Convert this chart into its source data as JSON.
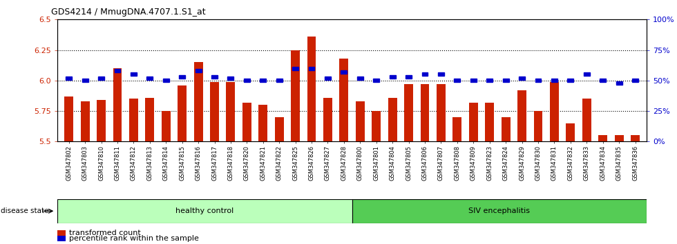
{
  "title": "GDS4214 / MmugDNA.4707.1.S1_at",
  "samples": [
    "GSM347802",
    "GSM347803",
    "GSM347810",
    "GSM347811",
    "GSM347812",
    "GSM347813",
    "GSM347814",
    "GSM347815",
    "GSM347816",
    "GSM347817",
    "GSM347818",
    "GSM347820",
    "GSM347821",
    "GSM347822",
    "GSM347825",
    "GSM347826",
    "GSM347827",
    "GSM347828",
    "GSM347800",
    "GSM347801",
    "GSM347804",
    "GSM347805",
    "GSM347806",
    "GSM347807",
    "GSM347808",
    "GSM347809",
    "GSM347823",
    "GSM347824",
    "GSM347829",
    "GSM347830",
    "GSM347831",
    "GSM347832",
    "GSM347833",
    "GSM347834",
    "GSM347835",
    "GSM347836"
  ],
  "bar_values": [
    5.87,
    5.83,
    5.84,
    6.1,
    5.85,
    5.86,
    5.75,
    5.96,
    6.15,
    5.99,
    5.99,
    5.82,
    5.8,
    5.7,
    6.25,
    6.36,
    5.86,
    6.18,
    5.83,
    5.75,
    5.86,
    5.97,
    5.97,
    5.97,
    5.7,
    5.82,
    5.82,
    5.7,
    5.92,
    5.75,
    5.99,
    5.65,
    5.85,
    5.55,
    5.55,
    5.55
  ],
  "percentile_values": [
    52,
    50,
    52,
    58,
    55,
    52,
    50,
    53,
    58,
    53,
    52,
    50,
    50,
    50,
    60,
    60,
    52,
    57,
    52,
    50,
    53,
    53,
    55,
    55,
    50,
    50,
    50,
    50,
    52,
    50,
    50,
    50,
    55,
    50,
    48,
    50
  ],
  "ylim_left": [
    5.5,
    6.5
  ],
  "ylim_right": [
    0,
    100
  ],
  "yticks_left": [
    5.5,
    5.75,
    6.0,
    6.25,
    6.5
  ],
  "yticks_right": [
    0,
    25,
    50,
    75,
    100
  ],
  "bar_color": "#cc2200",
  "percentile_color": "#0000cc",
  "healthy_count": 18,
  "healthy_label": "healthy control",
  "siv_label": "SIV encephalitis",
  "healthy_color": "#bbffbb",
  "siv_color": "#55cc55",
  "disease_state_label": "disease state",
  "legend_bar_label": "transformed count",
  "legend_perc_label": "percentile rank within the sample"
}
